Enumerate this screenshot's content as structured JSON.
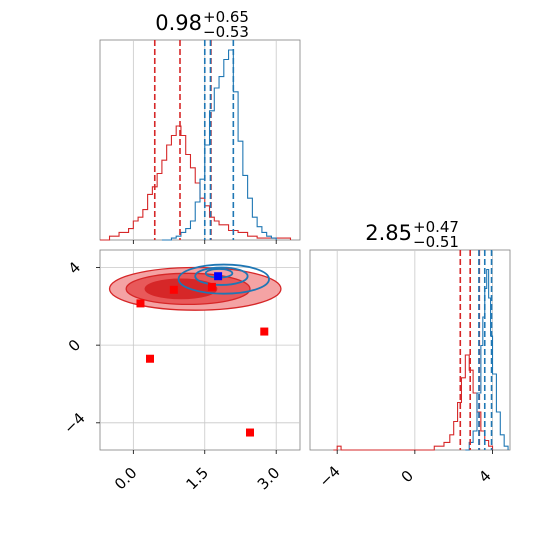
{
  "colors": {
    "red": "#d62728",
    "blue": "#1f77b4",
    "frame": "#808080",
    "grid": "#c8c8c8"
  },
  "chart_data": {
    "type": "corner",
    "parameters": [
      {
        "title_value": "0.98",
        "title_plus": "+0.65",
        "title_minus": "−0.53",
        "range": [
          -0.7,
          3.5
        ],
        "ticks": [
          0.0,
          1.5,
          3.0
        ],
        "tick_labels": [
          "0.0",
          "1.5",
          "3.0"
        ],
        "quantiles_red": [
          0.45,
          0.98,
          1.63
        ],
        "quantiles_blue": [
          1.5,
          1.62,
          2.1
        ],
        "hist_red": [
          [
            -0.7,
            0.0
          ],
          [
            -0.5,
            0.02
          ],
          [
            -0.3,
            0.04
          ],
          [
            -0.1,
            0.06
          ],
          [
            0.0,
            0.1
          ],
          [
            0.1,
            0.12
          ],
          [
            0.2,
            0.16
          ],
          [
            0.3,
            0.24
          ],
          [
            0.4,
            0.28
          ],
          [
            0.5,
            0.35
          ],
          [
            0.6,
            0.42
          ],
          [
            0.7,
            0.5
          ],
          [
            0.8,
            0.55
          ],
          [
            0.9,
            0.6
          ],
          [
            1.0,
            0.55
          ],
          [
            1.1,
            0.45
          ],
          [
            1.2,
            0.38
          ],
          [
            1.3,
            0.3
          ],
          [
            1.4,
            0.22
          ],
          [
            1.5,
            0.18
          ],
          [
            1.6,
            0.12
          ],
          [
            1.7,
            0.1
          ],
          [
            1.8,
            0.08
          ],
          [
            2.0,
            0.05
          ],
          [
            2.2,
            0.04
          ],
          [
            2.4,
            0.02
          ],
          [
            2.6,
            0.01
          ],
          [
            2.9,
            0.01
          ],
          [
            3.3,
            0.0
          ]
        ],
        "hist_blue": [
          [
            0.6,
            0.0
          ],
          [
            0.8,
            0.01
          ],
          [
            0.9,
            0.02
          ],
          [
            1.0,
            0.04
          ],
          [
            1.1,
            0.06
          ],
          [
            1.2,
            0.1
          ],
          [
            1.3,
            0.2
          ],
          [
            1.4,
            0.32
          ],
          [
            1.5,
            0.5
          ],
          [
            1.6,
            0.68
          ],
          [
            1.7,
            0.8
          ],
          [
            1.8,
            0.86
          ],
          [
            1.9,
            0.95
          ],
          [
            2.0,
            1.0
          ],
          [
            2.1,
            0.78
          ],
          [
            2.2,
            0.52
          ],
          [
            2.3,
            0.34
          ],
          [
            2.4,
            0.22
          ],
          [
            2.5,
            0.12
          ],
          [
            2.6,
            0.07
          ],
          [
            2.7,
            0.04
          ],
          [
            2.8,
            0.02
          ],
          [
            2.9,
            0.01
          ],
          [
            3.0,
            0.0
          ]
        ]
      },
      {
        "title_value": "2.85",
        "title_plus": "+0.47",
        "title_minus": "−0.51",
        "range": [
          -5.4,
          4.9
        ],
        "ticks": [
          -4,
          0,
          4
        ],
        "tick_labels": [
          "−4",
          "0",
          "4"
        ],
        "quantiles_red": [
          2.34,
          2.85,
          3.32
        ],
        "quantiles_blue": [
          3.3,
          3.6,
          3.95
        ],
        "hist_red": [
          [
            -4.2,
            0.0
          ],
          [
            -4.0,
            0.02
          ],
          [
            -3.8,
            0.0
          ],
          [
            0.5,
            0.0
          ],
          [
            1.0,
            0.02
          ],
          [
            1.5,
            0.04
          ],
          [
            1.8,
            0.08
          ],
          [
            2.0,
            0.15
          ],
          [
            2.2,
            0.25
          ],
          [
            2.4,
            0.38
          ],
          [
            2.6,
            0.5
          ],
          [
            2.8,
            0.42
          ],
          [
            3.0,
            0.3
          ],
          [
            3.2,
            0.2
          ],
          [
            3.4,
            0.1
          ],
          [
            3.6,
            0.05
          ],
          [
            3.8,
            0.02
          ],
          [
            4.0,
            0.0
          ]
        ],
        "hist_blue": [
          [
            2.6,
            0.0
          ],
          [
            2.8,
            0.04
          ],
          [
            3.0,
            0.1
          ],
          [
            3.2,
            0.3
          ],
          [
            3.4,
            0.55
          ],
          [
            3.5,
            0.7
          ],
          [
            3.6,
            0.85
          ],
          [
            3.7,
            0.95
          ],
          [
            3.8,
            0.8
          ],
          [
            3.9,
            0.6
          ],
          [
            4.0,
            0.4
          ],
          [
            4.2,
            0.2
          ],
          [
            4.4,
            0.08
          ],
          [
            4.6,
            0.02
          ],
          [
            4.8,
            0.0
          ]
        ]
      }
    ],
    "scatter_2d": {
      "xlim": [
        -0.7,
        3.5
      ],
      "ylim": [
        -5.4,
        4.9
      ],
      "red_contours": [
        {
          "cx": 1.3,
          "cy": 2.9,
          "rx": 1.8,
          "ry": 1.1,
          "level": "outer"
        },
        {
          "cx": 1.15,
          "cy": 2.9,
          "rx": 1.3,
          "ry": 0.8,
          "level": "middle"
        },
        {
          "cx": 1.0,
          "cy": 2.9,
          "rx": 0.75,
          "ry": 0.5,
          "level": "inner"
        }
      ],
      "blue_contours": [
        {
          "cx": 1.9,
          "cy": 3.4,
          "rx": 0.95,
          "ry": 0.75
        },
        {
          "cx": 1.85,
          "cy": 3.55,
          "rx": 0.55,
          "ry": 0.45
        },
        {
          "cx": 1.8,
          "cy": 3.7,
          "rx": 0.28,
          "ry": 0.22
        }
      ],
      "red_markers": [
        [
          0.15,
          2.15
        ],
        [
          0.85,
          2.85
        ],
        [
          1.65,
          3.0
        ],
        [
          0.35,
          -0.7
        ],
        [
          2.75,
          0.7
        ],
        [
          2.45,
          -4.5
        ]
      ],
      "blue_markers": [
        [
          1.78,
          3.55
        ]
      ]
    }
  }
}
